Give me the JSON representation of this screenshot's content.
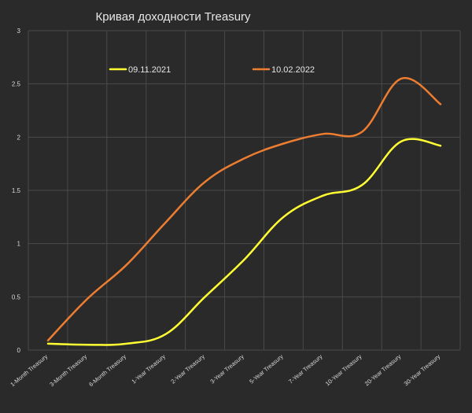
{
  "chart_data": {
    "type": "line",
    "title": "Кривая доходности Treasury",
    "xlabel": "",
    "ylabel": "",
    "ylim": [
      0,
      3
    ],
    "yticks": [
      0,
      0.5,
      1,
      1.5,
      2,
      2.5,
      3
    ],
    "grid": true,
    "legend_position": "top",
    "categories": [
      "1-Month Treasury",
      "3-Month Treasury",
      "6-Month Treasury",
      "1-Year Treasury",
      "2-Year Treasury",
      "3-Year Treasury",
      "5-Year Treasury",
      "7-Year Treasury",
      "10-Year Treasury",
      "20-Year Treasury",
      "30-Year Treasury"
    ],
    "series": [
      {
        "name": "09.11.2021",
        "color": "#ffff33",
        "values": [
          0.06,
          0.05,
          0.06,
          0.15,
          0.5,
          0.85,
          1.25,
          1.45,
          1.55,
          1.96,
          1.92
        ]
      },
      {
        "name": "10.02.2022",
        "color": "#ed7d31",
        "values": [
          0.09,
          0.48,
          0.8,
          1.2,
          1.58,
          1.8,
          1.94,
          2.03,
          2.05,
          2.55,
          2.31
        ]
      }
    ]
  }
}
